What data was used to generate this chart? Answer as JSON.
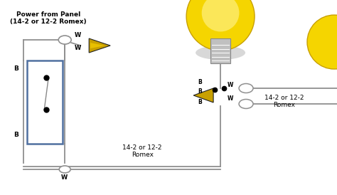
{
  "bg_color": "#ffffff",
  "wire_color": "#909090",
  "wire_color_dark": "#707070",
  "switch_box_edge": "#5070a0",
  "cone_face": "#c8a000",
  "cone_edge": "#222222",
  "title_text": "Power from Panel\n(14-2 or 12-2 Romex)",
  "label_romex_bot": "14-2 or 12-2\nRomex",
  "label_romex_right": "14-2 or 12-2\nRomex",
  "bulb_yellow": "#f5d500",
  "bulb_yellow_light": "#fef080",
  "bulb_edge": "#c8a000",
  "base_color": "#c0c0c0",
  "glow_color": "#b8b8b8",
  "sun_color": "#f5d500"
}
